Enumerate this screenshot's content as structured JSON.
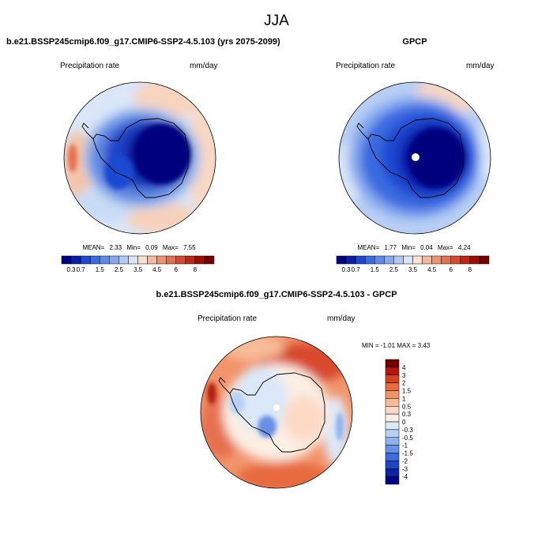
{
  "figure": {
    "title": "JJA",
    "bottom_title": "b.e21.BSSP245cmip6.f09_g17.CMIP6-SSP2-4.5.103 - GPCP"
  },
  "panels": {
    "model": {
      "title": "b.e21.BSSP245cmip6.f09_g17.CMIP6-SSP2-4.5.103 (yrs 2075-2099)",
      "variable": "Precipitation rate",
      "units": "mm/day",
      "mean_label": "MEAN=",
      "mean": "2.33",
      "min_label": "Min=",
      "min": "0.09",
      "max_label": "Max=",
      "max": "7.55"
    },
    "obs": {
      "title": "GPCP",
      "variable": "Precipitation rate",
      "units": "mm/day",
      "mean_label": "MEAN=",
      "mean": "1.77",
      "min_label": "Min=",
      "min": "0.04",
      "max_label": "Max=",
      "max": "4.24"
    },
    "diff": {
      "variable": "Precipitation rate",
      "units": "mm/day",
      "minmax_text": "MIN =  -1.01 MAX =   3.43"
    }
  },
  "chart_data": [
    {
      "type": "heatmap",
      "title": "b.e21.BSSP245cmip6.f09_g17.CMIP6-SSP2-4.5.103 (yrs 2075-2099)",
      "projection": "south-polar stereographic",
      "field": "Precipitation rate",
      "units": "mm/day",
      "mean": 2.33,
      "min": 0.09,
      "max": 7.55,
      "colorbar_levels": [
        "0.3",
        "0.7",
        "1",
        "1.5",
        "2",
        "2.5",
        "3",
        "3.5",
        "4",
        "4.5",
        "5",
        "6",
        "7",
        "8"
      ],
      "colorbar_labels": [
        "0.3",
        "0.7",
        "1.5",
        "2.5",
        "3.5",
        "4.5",
        "6",
        "8"
      ],
      "colors": [
        "#00007f",
        "#0a1fa8",
        "#1f48d2",
        "#3a6ae0",
        "#5f8ae8",
        "#86a9ef",
        "#b0c9f5",
        "#d9e6fa",
        "#fbe0d0",
        "#f6b99c",
        "#ef9472",
        "#e5704f",
        "#d84a2e",
        "#c12514",
        "#9d0d04",
        "#730000"
      ],
      "colorbar_orientation": "horizontal"
    },
    {
      "type": "heatmap",
      "title": "GPCP",
      "projection": "south-polar stereographic",
      "field": "Precipitation rate",
      "units": "mm/day",
      "mean": 1.77,
      "min": 0.04,
      "max": 4.24,
      "colorbar_levels": [
        "0.3",
        "0.7",
        "1",
        "1.5",
        "2",
        "2.5",
        "3",
        "3.5",
        "4",
        "4.5",
        "5",
        "6",
        "7",
        "8"
      ],
      "colorbar_labels": [
        "0.3",
        "0.7",
        "1.5",
        "2.5",
        "3.5",
        "4.5",
        "6",
        "8"
      ],
      "colors": [
        "#00007f",
        "#0a1fa8",
        "#1f48d2",
        "#3a6ae0",
        "#5f8ae8",
        "#86a9ef",
        "#b0c9f5",
        "#d9e6fa",
        "#fbe0d0",
        "#f6b99c",
        "#ef9472",
        "#e5704f",
        "#d84a2e",
        "#c12514",
        "#9d0d04",
        "#730000"
      ],
      "colorbar_orientation": "horizontal"
    },
    {
      "type": "heatmap",
      "title": "b.e21.BSSP245cmip6.f09_g17.CMIP6-SSP2-4.5.103 - GPCP",
      "projection": "south-polar stereographic",
      "field": "Precipitation rate",
      "units": "mm/day",
      "min": -1.01,
      "max": 3.43,
      "colorbar_levels": [
        "4",
        "3",
        "2",
        "1.5",
        "1",
        "0.5",
        "0.3",
        "0",
        "-0.3",
        "-0.5",
        "-1",
        "-1.5",
        "-2",
        "-3",
        "-4"
      ],
      "colors": [
        "#730000",
        "#b01a0c",
        "#d5401f",
        "#e86a40",
        "#f2946a",
        "#f8bb98",
        "#fcd9c4",
        "#fbeee3",
        "#dbe8f8",
        "#b7d0f4",
        "#8eb2ee",
        "#6690e6",
        "#3f6cdc",
        "#1f45c4",
        "#0c22a0",
        "#000080"
      ],
      "colorbar_orientation": "vertical"
    }
  ]
}
